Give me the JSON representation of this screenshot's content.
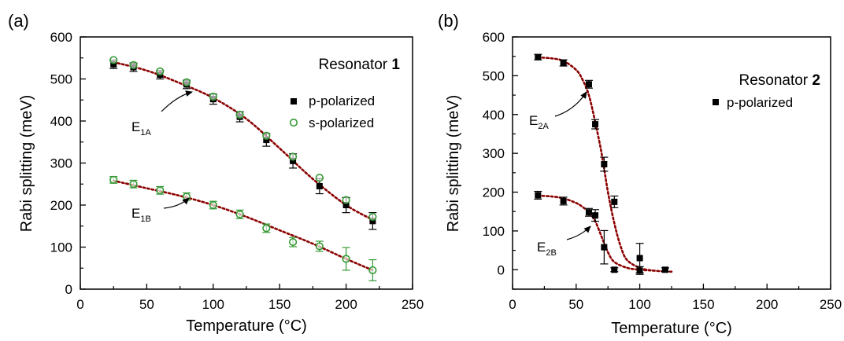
{
  "chart_data": [
    {
      "type": "scatter",
      "panel_label": "(a)",
      "title": "",
      "xlabel": "Temperature (°C)",
      "ylabel": "Rabi splitting (meV)",
      "xlim": [
        0,
        250
      ],
      "ylim": [
        0,
        600
      ],
      "xticks": [
        "0",
        "50",
        "100",
        "150",
        "200",
        "250"
      ],
      "yticks": [
        "0",
        "100",
        "200",
        "300",
        "400",
        "500",
        "600"
      ],
      "grid": false,
      "legend": {
        "placement": "top-right",
        "title_prefix": "Resonator ",
        "title_bold": "1",
        "entries": [
          "p-polarized",
          "s-polarized"
        ]
      },
      "annotations": [
        {
          "main": "E",
          "sub": "1A"
        },
        {
          "main": "E",
          "sub": "1B"
        }
      ],
      "series": [
        {
          "name": "p-polarized",
          "marker": "filled-square",
          "color": "#000000",
          "x": [
            25,
            40,
            60,
            80,
            100,
            120,
            140,
            160,
            180,
            200,
            220
          ],
          "y": [
            535,
            528,
            510,
            487,
            452,
            410,
            355,
            305,
            245,
            200,
            162
          ],
          "err": [
            10,
            10,
            10,
            10,
            12,
            12,
            15,
            17,
            18,
            18,
            20
          ]
        },
        {
          "name": "s-polarized",
          "marker": "open-circle",
          "color": "#339933",
          "x": [
            25,
            40,
            60,
            80,
            100,
            120,
            140,
            160,
            180,
            200,
            220
          ],
          "y": [
            545,
            533,
            518,
            492,
            458,
            415,
            365,
            315,
            265,
            212,
            172
          ]
        },
        {
          "name": "s-polarized",
          "marker": "open-circle",
          "color": "#339933",
          "x": [
            25,
            40,
            60,
            80,
            100,
            120,
            140,
            160,
            180,
            200,
            220
          ],
          "y": [
            260,
            250,
            235,
            220,
            200,
            178,
            145,
            112,
            102,
            72,
            45
          ],
          "err": [
            8,
            9,
            9,
            9,
            9,
            10,
            10,
            11,
            12,
            27,
            25
          ]
        }
      ],
      "fit_curves": [
        {
          "color": "#8b0000",
          "x": [
            25,
            50,
            75,
            100,
            125,
            150,
            175,
            200,
            220
          ],
          "y": [
            540,
            520,
            490,
            455,
            405,
            335,
            262,
            200,
            165
          ]
        },
        {
          "color": "#8b0000",
          "x": [
            25,
            50,
            75,
            100,
            125,
            150,
            175,
            200,
            220
          ],
          "y": [
            258,
            240,
            222,
            200,
            172,
            140,
            108,
            72,
            45
          ]
        }
      ]
    },
    {
      "type": "scatter",
      "panel_label": "(b)",
      "title": "",
      "xlabel": "Temperature (°C)",
      "ylabel": "Rabi splitting (meV)",
      "xlim": [
        0,
        250
      ],
      "ylim": [
        -50,
        600
      ],
      "xticks": [
        "0",
        "50",
        "100",
        "150",
        "200",
        "250"
      ],
      "yticks": [
        "0",
        "100",
        "200",
        "300",
        "400",
        "500",
        "600"
      ],
      "grid": false,
      "legend": {
        "placement": "top-right",
        "title_prefix": "Resonator ",
        "title_bold": "2",
        "entries": [
          "p-polarized"
        ]
      },
      "annotations": [
        {
          "main": "E",
          "sub": "2A"
        },
        {
          "main": "E",
          "sub": "2B"
        }
      ],
      "series": [
        {
          "name": "p-polarized",
          "marker": "filled-square",
          "color": "#000000",
          "x": [
            20,
            40,
            60,
            65,
            72,
            80,
            100,
            120
          ],
          "y": [
            548,
            533,
            478,
            375,
            272,
            175,
            30,
            0
          ],
          "err": [
            7,
            8,
            10,
            12,
            18,
            15,
            38,
            5
          ]
        },
        {
          "name": "p-polarized",
          "marker": "filled-square",
          "color": "#000000",
          "x": [
            20,
            40,
            60,
            65,
            72,
            80,
            100
          ],
          "y": [
            192,
            177,
            148,
            140,
            58,
            0,
            -2
          ],
          "err": [
            10,
            10,
            10,
            15,
            43,
            5,
            10
          ]
        }
      ],
      "fit_curves": [
        {
          "color": "#8b0000",
          "x": [
            20,
            30,
            40,
            50,
            55,
            60,
            65,
            70,
            75,
            80,
            85,
            90,
            100,
            110,
            125
          ],
          "y": [
            547,
            545,
            538,
            515,
            490,
            450,
            380,
            300,
            200,
            120,
            60,
            25,
            5,
            -2,
            -5
          ]
        },
        {
          "color": "#8b0000",
          "x": [
            20,
            30,
            40,
            50,
            55,
            60,
            65,
            70,
            75,
            80,
            90,
            100,
            110
          ],
          "y": [
            191,
            189,
            184,
            172,
            162,
            148,
            125,
            85,
            45,
            20,
            5,
            0,
            -2
          ]
        }
      ]
    }
  ]
}
